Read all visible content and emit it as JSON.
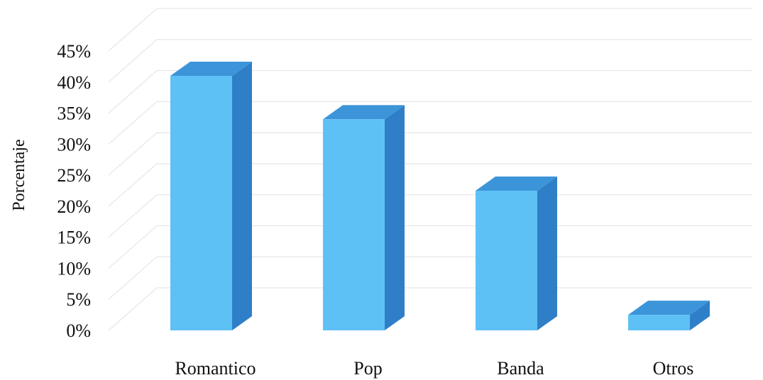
{
  "chart_data": {
    "type": "bar",
    "categories": [
      "Romantico",
      "Pop",
      "Banda",
      "Otros"
    ],
    "values": [
      41,
      34,
      22.5,
      2.5
    ],
    "ylabel": "Porcentaje",
    "xlabel": "",
    "ylim": [
      0,
      45
    ],
    "yticks": [
      "0%",
      "5%",
      "10%",
      "15%",
      "20%",
      "25%",
      "30%",
      "35%",
      "40%",
      "45%"
    ],
    "grid": true,
    "style": "3d-column",
    "colors": {
      "front": "#5ec1f5",
      "side": "#2f7fc8",
      "top": "#3c95d8",
      "edge": "#2a6fb3"
    }
  }
}
